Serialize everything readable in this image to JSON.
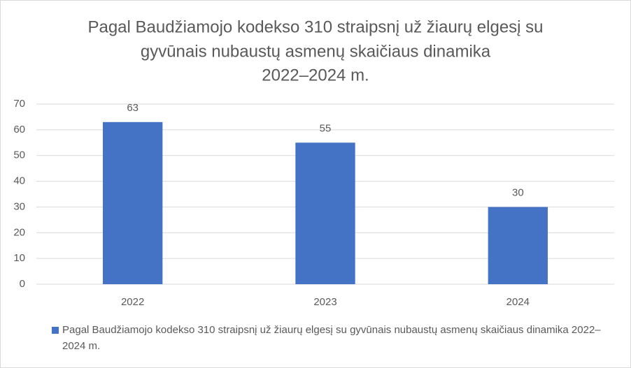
{
  "chart_data": {
    "type": "bar",
    "title": [
      "Pagal Baudžiamojo kodekso 310 straipsnį už žiaurų elgesį su",
      "gyvūnais nubaustų asmenų skaičiaus dinamika",
      "2022–2024 m."
    ],
    "categories": [
      "2022",
      "2023",
      "2024"
    ],
    "series": [
      {
        "name": "Pagal Baudžiamojo kodekso 310 straipsnį už žiaurų elgesį su gyvūnais nubaustų asmenų skaičiaus dinamika 2022–2024 m.",
        "color": "#4472c4",
        "values": [
          63,
          55,
          30
        ]
      }
    ],
    "ylim": [
      0,
      70
    ],
    "yticks": [
      0,
      10,
      20,
      30,
      40,
      50,
      60,
      70
    ],
    "grid": true,
    "legend": "bottom"
  }
}
